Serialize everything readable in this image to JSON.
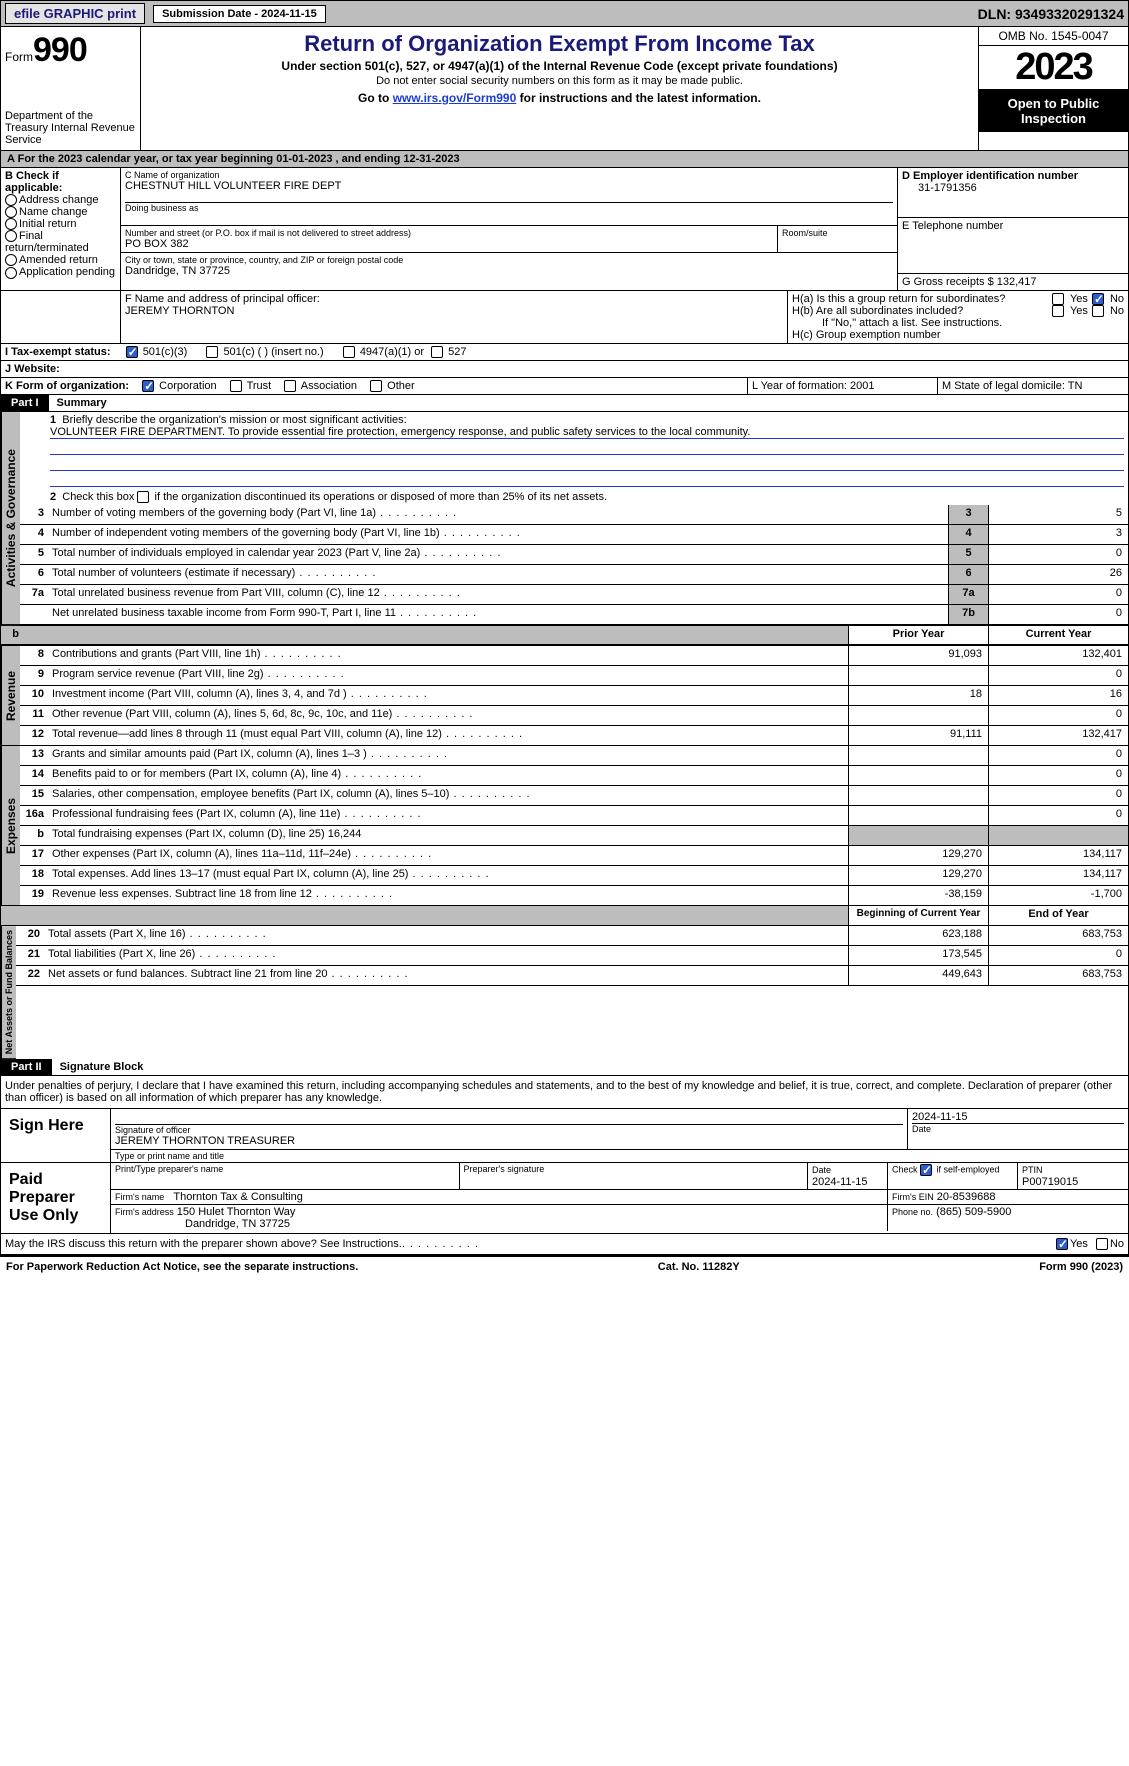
{
  "topbar": {
    "efile": "efile GRAPHIC print",
    "submission": "Submission Date - 2024-11-15",
    "dln": "DLN: 93493320291324"
  },
  "header": {
    "form_word": "Form",
    "form_no": "990",
    "title": "Return of Organization Exempt From Income Tax",
    "sub1": "Under section 501(c), 527, or 4947(a)(1) of the Internal Revenue Code (except private foundations)",
    "sub2": "Do not enter social security numbers on this form as it may be made public.",
    "sub3_pre": "Go to ",
    "sub3_link": "www.irs.gov/Form990",
    "sub3_post": " for instructions and the latest information.",
    "dept": "Department of the Treasury Internal Revenue Service",
    "omb": "OMB No. 1545-0047",
    "year": "2023",
    "open": "Open to Public Inspection"
  },
  "section_a": {
    "taxyear": "For the 2023 calendar year, or tax year beginning 01-01-2023   , and ending 12-31-2023",
    "b_label": "B Check if applicable:",
    "b_items": [
      "Address change",
      "Name change",
      "Initial return",
      "Final return/terminated",
      "Amended return",
      "Application pending"
    ],
    "c_label": "C Name of organization",
    "c_name": "CHESTNUT HILL VOLUNTEER FIRE DEPT",
    "dba_label": "Doing business as",
    "addr_label": "Number and street (or P.O. box if mail is not delivered to street address)",
    "addr": "PO BOX 382",
    "room_label": "Room/suite",
    "city_label": "City or town, state or province, country, and ZIP or foreign postal code",
    "city": "Dandridge, TN  37725",
    "d_label": "D Employer identification number",
    "d_val": "31-1791356",
    "e_label": "E Telephone number",
    "g_label": "G Gross receipts $ 132,417",
    "f_label": "F  Name and address of principal officer:",
    "f_name": "JEREMY THORNTON",
    "h_a": "H(a)  Is this a group return for subordinates?",
    "h_b": "H(b)  Are all subordinates included?",
    "h_note": "If \"No,\" attach a list. See instructions.",
    "h_c": "H(c)  Group exemption number",
    "yes": "Yes",
    "no": "No",
    "i_label": "I  Tax-exempt status:",
    "i_501c3": "501(c)(3)",
    "i_501c": "501(c) (  ) (insert no.)",
    "i_4947": "4947(a)(1) or",
    "i_527": "527",
    "j_label": "J  Website:",
    "k_label": "K Form of organization:",
    "k_corp": "Corporation",
    "k_trust": "Trust",
    "k_assoc": "Association",
    "k_other": "Other",
    "l_label": "L Year of formation: 2001",
    "m_label": "M State of legal domicile: TN"
  },
  "part1": {
    "hdr": "Part I",
    "title": "Summary",
    "q1": "Briefly describe the organization's mission or most significant activities:",
    "mission": "VOLUNTEER FIRE DEPARTMENT. To provide essential fire protection, emergency response, and public safety services to the local community.",
    "q2": "Check this box      if the organization discontinued its operations or disposed of more than 25% of its net assets.",
    "lines_ag": [
      {
        "n": "3",
        "d": "Number of voting members of the governing body (Part VI, line 1a)",
        "b": "3",
        "v": "5"
      },
      {
        "n": "4",
        "d": "Number of independent voting members of the governing body (Part VI, line 1b)",
        "b": "4",
        "v": "3"
      },
      {
        "n": "5",
        "d": "Total number of individuals employed in calendar year 2023 (Part V, line 2a)",
        "b": "5",
        "v": "0"
      },
      {
        "n": "6",
        "d": "Total number of volunteers (estimate if necessary)",
        "b": "6",
        "v": "26"
      },
      {
        "n": "7a",
        "d": "Total unrelated business revenue from Part VIII, column (C), line 12",
        "b": "7a",
        "v": "0"
      },
      {
        "n": "",
        "d": "Net unrelated business taxable income from Form 990-T, Part I, line 11",
        "b": "7b",
        "v": "0"
      }
    ],
    "hdr_prior": "Prior Year",
    "hdr_curr": "Current Year",
    "lines_rev": [
      {
        "n": "8",
        "d": "Contributions and grants (Part VIII, line 1h)",
        "p": "91,093",
        "c": "132,401"
      },
      {
        "n": "9",
        "d": "Program service revenue (Part VIII, line 2g)",
        "p": "",
        "c": "0"
      },
      {
        "n": "10",
        "d": "Investment income (Part VIII, column (A), lines 3, 4, and 7d )",
        "p": "18",
        "c": "16"
      },
      {
        "n": "11",
        "d": "Other revenue (Part VIII, column (A), lines 5, 6d, 8c, 9c, 10c, and 11e)",
        "p": "",
        "c": "0"
      },
      {
        "n": "12",
        "d": "Total revenue—add lines 8 through 11 (must equal Part VIII, column (A), line 12)",
        "p": "91,111",
        "c": "132,417"
      }
    ],
    "lines_exp": [
      {
        "n": "13",
        "d": "Grants and similar amounts paid (Part IX, column (A), lines 1–3 )",
        "p": "",
        "c": "0"
      },
      {
        "n": "14",
        "d": "Benefits paid to or for members (Part IX, column (A), line 4)",
        "p": "",
        "c": "0"
      },
      {
        "n": "15",
        "d": "Salaries, other compensation, employee benefits (Part IX, column (A), lines 5–10)",
        "p": "",
        "c": "0"
      },
      {
        "n": "16a",
        "d": "Professional fundraising fees (Part IX, column (A), line 11e)",
        "p": "",
        "c": "0"
      },
      {
        "n": "b",
        "d": "Total fundraising expenses (Part IX, column (D), line 25) 16,244",
        "p": "grey",
        "c": "grey"
      },
      {
        "n": "17",
        "d": "Other expenses (Part IX, column (A), lines 11a–11d, 11f–24e)",
        "p": "129,270",
        "c": "134,117"
      },
      {
        "n": "18",
        "d": "Total expenses. Add lines 13–17 (must equal Part IX, column (A), line 25)",
        "p": "129,270",
        "c": "134,117"
      },
      {
        "n": "19",
        "d": "Revenue less expenses. Subtract line 18 from line 12",
        "p": "-38,159",
        "c": "-1,700"
      }
    ],
    "hdr_begin": "Beginning of Current Year",
    "hdr_end": "End of Year",
    "lines_na": [
      {
        "n": "20",
        "d": "Total assets (Part X, line 16)",
        "p": "623,188",
        "c": "683,753"
      },
      {
        "n": "21",
        "d": "Total liabilities (Part X, line 26)",
        "p": "173,545",
        "c": "0"
      },
      {
        "n": "22",
        "d": "Net assets or fund balances. Subtract line 21 from line 20",
        "p": "449,643",
        "c": "683,753"
      }
    ],
    "vlabels": {
      "ag": "Activities & Governance",
      "rev": "Revenue",
      "exp": "Expenses",
      "na": "Net Assets or Fund Balances"
    }
  },
  "part2": {
    "hdr": "Part II",
    "title": "Signature Block",
    "penalty": "Under penalties of perjury, I declare that I have examined this return, including accompanying schedules and statements, and to the best of my knowledge and belief, it is true, correct, and complete. Declaration of preparer (other than officer) is based on all information of which preparer has any knowledge.",
    "sign_here": "Sign Here",
    "sig_officer": "Signature of officer",
    "sig_date_label": "Date",
    "sig_date": "2024-11-15",
    "officer_name": "JEREMY THORNTON TREASURER",
    "type_label": "Type or print name and title",
    "paid": "Paid Preparer Use Only",
    "prep_name_label": "Print/Type preparer's name",
    "prep_sig_label": "Preparer's signature",
    "prep_date_label": "Date",
    "prep_date": "2024-11-15",
    "check_self": "Check        if self-employed",
    "ptin_label": "PTIN",
    "ptin": "P00719015",
    "firm_name_label": "Firm's name",
    "firm_name": "Thornton Tax & Consulting",
    "firm_ein_label": "Firm's EIN",
    "firm_ein": "20-8539688",
    "firm_addr_label": "Firm's address",
    "firm_addr1": "150 Hulet Thornton Way",
    "firm_addr2": "Dandridge, TN  37725",
    "phone_label": "Phone no.",
    "phone": "(865) 509-5900",
    "may_irs": "May the IRS discuss this return with the preparer shown above? See Instructions.",
    "yes": "Yes",
    "no": "No"
  },
  "footer": {
    "pra": "For Paperwork Reduction Act Notice, see the separate instructions.",
    "cat": "Cat. No. 11282Y",
    "form": "Form 990 (2023)"
  }
}
